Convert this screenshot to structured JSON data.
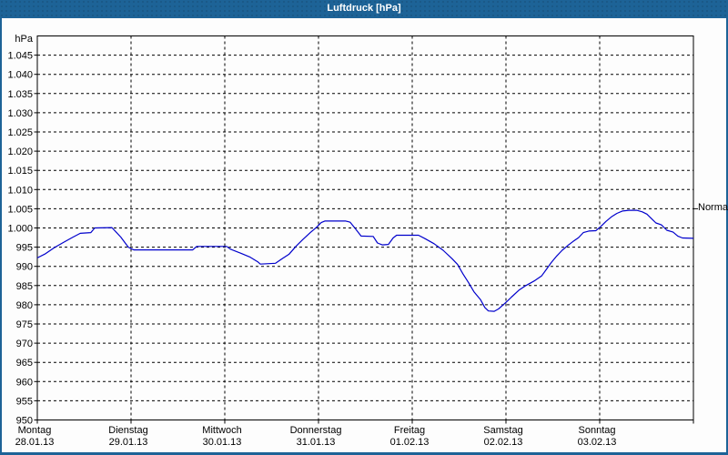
{
  "window": {
    "title": "Luftdruck [hPa]",
    "titlebar_color": "#1d6397",
    "border_color": "#1d6397",
    "background_color": "#fdfdfd"
  },
  "chart_data": {
    "type": "line",
    "title": "Luftdruck [hPa]",
    "ylabel": "hPa",
    "xlabel": "",
    "ylim": [
      950,
      1050
    ],
    "x_range_hours": [
      0,
      168
    ],
    "grid": "dashed",
    "legend_position": "none",
    "line_color": "#0000cc",
    "grid_color": "#000000",
    "text_color": "#000000",
    "yticks": [
      {
        "value": 1045,
        "label": "1.045"
      },
      {
        "value": 1040,
        "label": "1.040"
      },
      {
        "value": 1035,
        "label": "1.035"
      },
      {
        "value": 1030,
        "label": "1.030"
      },
      {
        "value": 1025,
        "label": "1.025"
      },
      {
        "value": 1020,
        "label": "1.020"
      },
      {
        "value": 1015,
        "label": "1.015"
      },
      {
        "value": 1010,
        "label": "1.010"
      },
      {
        "value": 1005,
        "label": "1.005"
      },
      {
        "value": 1000,
        "label": "1.000"
      },
      {
        "value": 995,
        "label": "995"
      },
      {
        "value": 990,
        "label": "990"
      },
      {
        "value": 985,
        "label": "985"
      },
      {
        "value": 980,
        "label": "980"
      },
      {
        "value": 975,
        "label": "975"
      },
      {
        "value": 970,
        "label": "970"
      },
      {
        "value": 965,
        "label": "965"
      },
      {
        "value": 960,
        "label": "960"
      },
      {
        "value": 955,
        "label": "955"
      },
      {
        "value": 950,
        "label": "950"
      }
    ],
    "days": [
      {
        "label": "Montag",
        "date": "28.01.13"
      },
      {
        "label": "Dienstag",
        "date": "29.01.13"
      },
      {
        "label": "Mittwoch",
        "date": "30.01.13"
      },
      {
        "label": "Donnerstag",
        "date": "31.01.13"
      },
      {
        "label": "Freitag",
        "date": "01.02.13"
      },
      {
        "label": "Samstag",
        "date": "02.02.13"
      },
      {
        "label": "Sonntag",
        "date": "03.02.13"
      }
    ],
    "normal_marker": {
      "label": "Normal",
      "value": 1005
    },
    "series": [
      {
        "name": "Luftdruck",
        "unit": "hPa",
        "points_hours_hpa": [
          [
            0,
            992.2
          ],
          [
            2.1,
            993.3
          ],
          [
            4.4,
            994.9
          ],
          [
            6.8,
            996.3
          ],
          [
            9.1,
            997.6
          ],
          [
            11,
            998.6
          ],
          [
            13.7,
            998.8
          ],
          [
            14.7,
            1000
          ],
          [
            19.1,
            1000.1
          ],
          [
            21.4,
            997.6
          ],
          [
            23.3,
            995
          ],
          [
            24.7,
            994.3
          ],
          [
            39.8,
            994.3
          ],
          [
            40.8,
            995.2
          ],
          [
            48.5,
            995.2
          ],
          [
            49.4,
            994.5
          ],
          [
            52.2,
            993.4
          ],
          [
            54.5,
            992.4
          ],
          [
            56.4,
            991.2
          ],
          [
            57.1,
            990.6
          ],
          [
            61,
            990.8
          ],
          [
            62.7,
            992
          ],
          [
            64.5,
            993.2
          ],
          [
            66.2,
            995.2
          ],
          [
            68,
            997
          ],
          [
            69.9,
            998.8
          ],
          [
            71.5,
            1000.2
          ],
          [
            72.7,
            1001.4
          ],
          [
            73.6,
            1001.8
          ],
          [
            79,
            1001.8
          ],
          [
            80.1,
            1001.5
          ],
          [
            81.3,
            1000
          ],
          [
            82.9,
            997.9
          ],
          [
            86,
            997.8
          ],
          [
            87.1,
            996.1
          ],
          [
            88.3,
            995.6
          ],
          [
            89.9,
            995.7
          ],
          [
            91.1,
            997.4
          ],
          [
            92,
            998.1
          ],
          [
            97.6,
            998.1
          ],
          [
            99.3,
            997.2
          ],
          [
            101.6,
            995.9
          ],
          [
            103.9,
            994.2
          ],
          [
            106.2,
            992
          ],
          [
            107.6,
            990.5
          ],
          [
            109,
            988
          ],
          [
            110.4,
            985.8
          ],
          [
            111.8,
            983.4
          ],
          [
            113.5,
            981.3
          ],
          [
            114.6,
            979.3
          ],
          [
            115.5,
            978.4
          ],
          [
            117,
            978.3
          ],
          [
            118.1,
            978.9
          ],
          [
            119.2,
            979.9
          ],
          [
            120.4,
            981
          ],
          [
            121.4,
            982
          ],
          [
            123.3,
            983.8
          ],
          [
            125.1,
            985
          ],
          [
            127.4,
            986.3
          ],
          [
            129.1,
            987.5
          ],
          [
            130.2,
            989
          ],
          [
            131.6,
            991
          ],
          [
            133,
            992.7
          ],
          [
            134.4,
            994.2
          ],
          [
            135.8,
            995.4
          ],
          [
            137.2,
            996.5
          ],
          [
            138.6,
            997.5
          ],
          [
            139.8,
            998.8
          ],
          [
            141.2,
            999.2
          ],
          [
            143,
            999.3
          ],
          [
            144.2,
            1000.3
          ],
          [
            145.6,
            1001.7
          ],
          [
            147,
            1002.9
          ],
          [
            148.4,
            1003.8
          ],
          [
            149.8,
            1004.4
          ],
          [
            151.5,
            1004.6
          ],
          [
            153.5,
            1004.6
          ],
          [
            154.9,
            1004.2
          ],
          [
            156.1,
            1003.6
          ],
          [
            157.2,
            1002.5
          ],
          [
            158.4,
            1001.3
          ],
          [
            159.8,
            1000.8
          ],
          [
            161.2,
            999.4
          ],
          [
            162.8,
            998.9
          ],
          [
            164,
            997.9
          ],
          [
            165.2,
            997.4
          ],
          [
            168,
            997.3
          ]
        ]
      }
    ]
  }
}
